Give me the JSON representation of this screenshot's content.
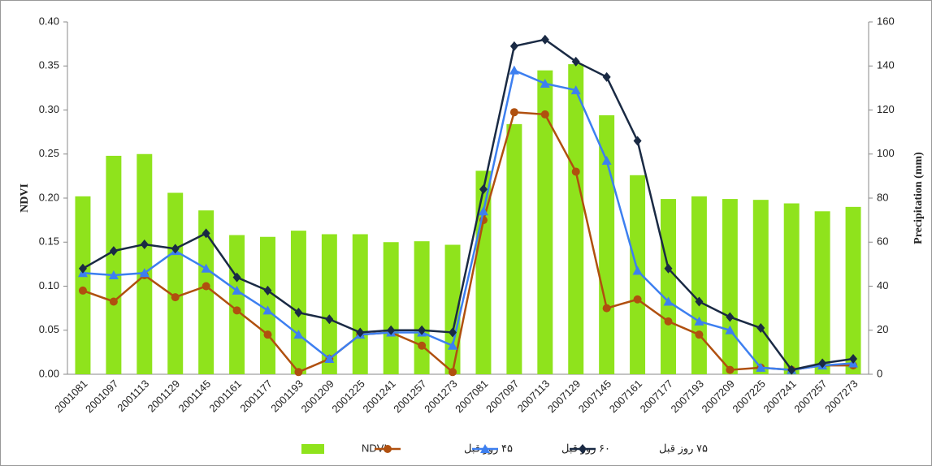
{
  "chart_data": {
    "type": "bar",
    "y_label": "NDVI",
    "y2_label": "Precipitation (mm)",
    "categories": [
      "2001081",
      "2001097",
      "2001113",
      "2001129",
      "2001145",
      "2001161",
      "2001177",
      "2001193",
      "2001209",
      "2001225",
      "2001241",
      "2001257",
      "2001273",
      "2007081",
      "2007097",
      "2007113",
      "2007129",
      "2007145",
      "2007161",
      "2007177",
      "2007193",
      "2007209",
      "2007225",
      "2007241",
      "2007257",
      "2007273"
    ],
    "ylim": [
      0,
      0.4
    ],
    "yticks": [
      {
        "value": 0,
        "label": "0.00"
      },
      {
        "value": 0.05,
        "label": "0.05"
      },
      {
        "value": 0.1,
        "label": "0.10"
      },
      {
        "value": 0.15,
        "label": "0.15"
      },
      {
        "value": 0.2,
        "label": "0.20"
      },
      {
        "value": 0.25,
        "label": "0.25"
      },
      {
        "value": 0.3,
        "label": "0.30"
      },
      {
        "value": 0.35,
        "label": "0.35"
      },
      {
        "value": 0.4,
        "label": "0.40"
      }
    ],
    "y2lim": [
      0,
      160
    ],
    "y2ticks": [
      0,
      20,
      40,
      60,
      80,
      100,
      120,
      140,
      160
    ],
    "series": [
      {
        "name": "NDVI",
        "type": "bar",
        "color": "#8fe31c",
        "values": [
          0.202,
          0.248,
          0.25,
          0.206,
          0.186,
          0.158,
          0.156,
          0.163,
          0.159,
          0.159,
          0.15,
          0.151,
          0.147,
          0.231,
          0.284,
          0.345,
          0.352,
          0.294,
          0.226,
          0.199,
          0.202,
          0.199,
          0.198,
          0.194,
          0.185,
          0.19
        ]
      },
      {
        "name": "۴۵ روز قبل",
        "type": "line",
        "marker": "circle",
        "axis": "y2",
        "color": "#b0500f",
        "values": [
          38,
          33,
          45,
          35,
          40,
          29,
          18,
          1,
          7,
          18,
          19,
          13,
          1,
          70,
          119,
          118,
          92,
          30,
          34,
          24,
          18,
          2,
          3,
          2,
          4,
          4
        ]
      },
      {
        "name": "۶۰ روز قبل",
        "type": "line",
        "marker": "triangle",
        "axis": "y2",
        "color": "#3d7ff0",
        "values": [
          46,
          45,
          46,
          56,
          48,
          38,
          29,
          18,
          7,
          18,
          19,
          19,
          13,
          74,
          138,
          132,
          129,
          97,
          47,
          33,
          24,
          20,
          3,
          2,
          4,
          5
        ]
      },
      {
        "name": "۷۵ روز قبل",
        "type": "line",
        "marker": "diamond",
        "axis": "y2",
        "color": "#1a2a44",
        "values": [
          48,
          56,
          59,
          57,
          64,
          44,
          38,
          28,
          25,
          19,
          20,
          20,
          19,
          84,
          149,
          152,
          142,
          135,
          106,
          48,
          33,
          26,
          21,
          2,
          5,
          7
        ]
      }
    ]
  }
}
